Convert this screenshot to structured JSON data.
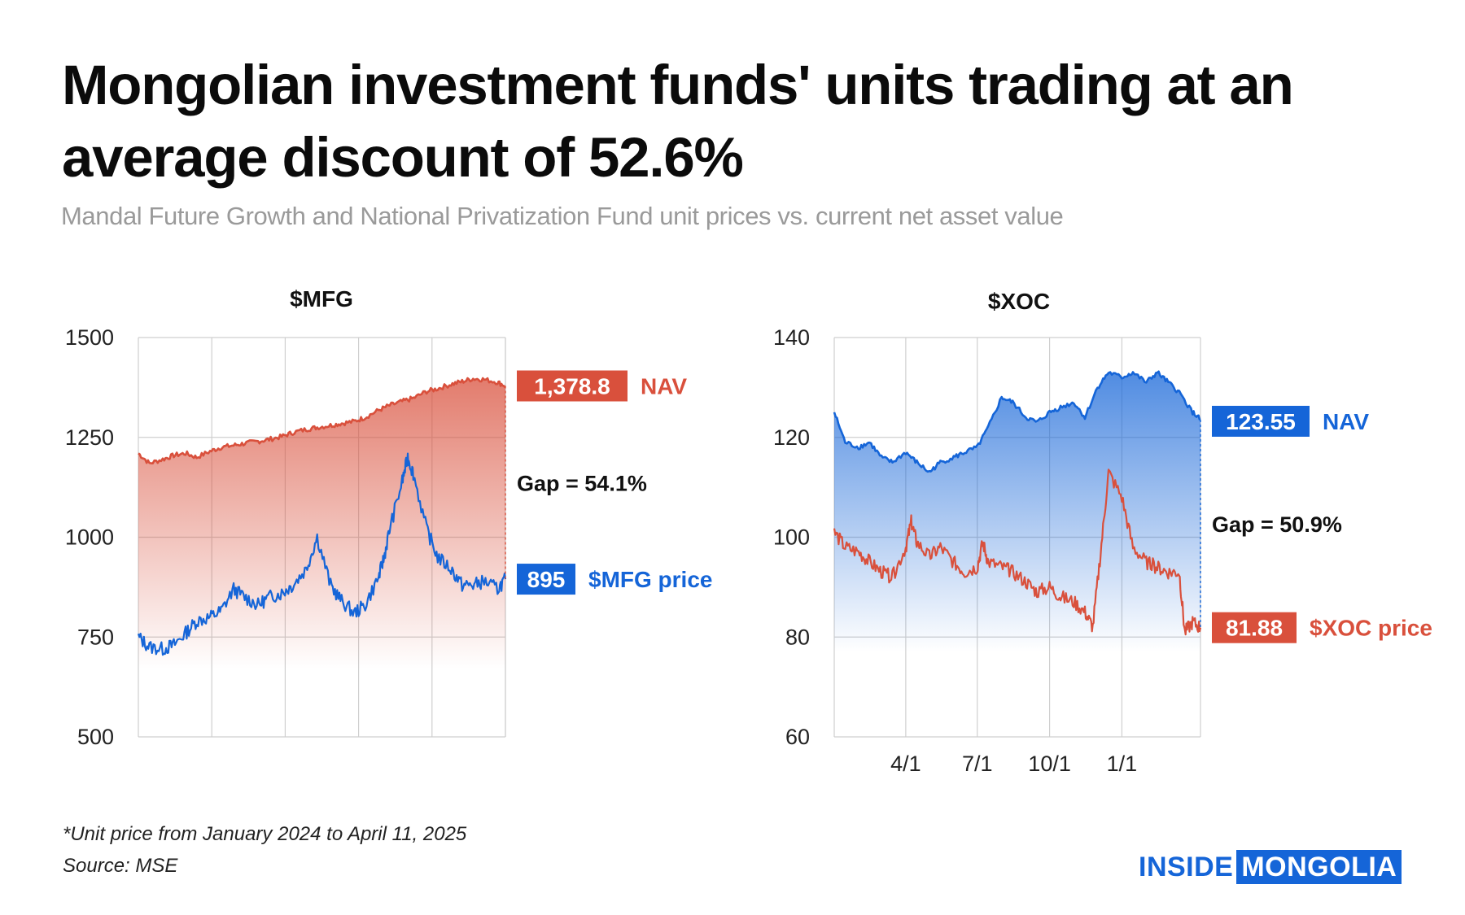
{
  "title": "Mongolian investment funds' units trading at an average discount of 52.6%",
  "subtitle": "Mandal Future Growth and National Privatization Fund unit prices vs. current net asset value",
  "footnote": "*Unit price from January 2024 to April 11, 2025",
  "source": "Source: MSE",
  "logo": {
    "part1": "INSIDE",
    "part2": "MONGOLIA"
  },
  "colors": {
    "red": "#d9503c",
    "blue": "#1565d8",
    "grid": "#cfcfcf"
  },
  "chart_data": [
    {
      "type": "area",
      "title": "$MFG",
      "ylim": [
        500,
        1500
      ],
      "yticks": [
        500,
        750,
        1000,
        1250,
        1500
      ],
      "xticks": [],
      "grid": true,
      "x_range": [
        "2024-01-01",
        "2025-04-11"
      ],
      "series": [
        {
          "role": "nav",
          "color": "#d9503c",
          "x": [
            "2024-01-01",
            "2024-01-15",
            "2024-02-01",
            "2024-02-15",
            "2024-03-01",
            "2024-03-15",
            "2024-04-01",
            "2024-04-15",
            "2024-05-01",
            "2024-05-15",
            "2024-06-01",
            "2024-06-15",
            "2024-07-01",
            "2024-07-15",
            "2024-08-01",
            "2024-08-15",
            "2024-09-01",
            "2024-09-15",
            "2024-10-01",
            "2024-10-15",
            "2024-11-01",
            "2024-11-15",
            "2024-12-01",
            "2024-12-15",
            "2025-01-01",
            "2025-01-15",
            "2025-02-01",
            "2025-02-15",
            "2025-03-01",
            "2025-03-15",
            "2025-04-01",
            "2025-04-11"
          ],
          "values": [
            1210,
            1185,
            1195,
            1205,
            1210,
            1200,
            1215,
            1225,
            1230,
            1235,
            1240,
            1245,
            1252,
            1262,
            1270,
            1275,
            1280,
            1285,
            1290,
            1300,
            1318,
            1330,
            1340,
            1348,
            1365,
            1372,
            1383,
            1390,
            1397,
            1395,
            1388,
            1378.8
          ],
          "label": "1,378.8",
          "name": "NAV"
        },
        {
          "role": "price",
          "color": "#1565d8",
          "x": [
            "2024-01-01",
            "2024-01-15",
            "2024-02-01",
            "2024-02-15",
            "2024-03-01",
            "2024-03-15",
            "2024-04-01",
            "2024-04-15",
            "2024-05-01",
            "2024-05-15",
            "2024-06-01",
            "2024-06-15",
            "2024-07-01",
            "2024-07-15",
            "2024-08-01",
            "2024-08-15",
            "2024-09-01",
            "2024-09-15",
            "2024-10-01",
            "2024-10-15",
            "2024-11-01",
            "2024-11-08",
            "2024-11-15",
            "2024-12-01",
            "2024-12-08",
            "2024-12-15",
            "2025-01-01",
            "2025-01-15",
            "2025-02-01",
            "2025-02-15",
            "2025-03-01",
            "2025-03-15",
            "2025-04-01",
            "2025-04-11"
          ],
          "values": [
            750,
            725,
            720,
            730,
            760,
            790,
            800,
            815,
            870,
            850,
            830,
            850,
            860,
            880,
            920,
            1000,
            880,
            840,
            810,
            830,
            900,
            950,
            1020,
            1140,
            1200,
            1160,
            1020,
            950,
            920,
            880,
            880,
            890,
            870,
            895
          ],
          "label": "895",
          "name": "$MFG price"
        }
      ],
      "gap_label": "Gap = 54.1%"
    },
    {
      "type": "area",
      "title": "$XOC",
      "ylim": [
        60,
        140
      ],
      "yticks": [
        60,
        80,
        100,
        120,
        140
      ],
      "xticks": [
        {
          "x": "2024-04-01",
          "label": "4/1"
        },
        {
          "x": "2024-07-01",
          "label": "7/1"
        },
        {
          "x": "2024-10-01",
          "label": "10/1"
        },
        {
          "x": "2025-01-01",
          "label": "1/1"
        }
      ],
      "grid": true,
      "x_range": [
        "2024-01-01",
        "2025-04-11"
      ],
      "series": [
        {
          "role": "nav",
          "color": "#1565d8",
          "x": [
            "2024-01-01",
            "2024-01-15",
            "2024-02-01",
            "2024-02-15",
            "2024-03-01",
            "2024-03-15",
            "2024-04-01",
            "2024-04-15",
            "2024-05-01",
            "2024-05-15",
            "2024-06-01",
            "2024-06-15",
            "2024-07-01",
            "2024-07-15",
            "2024-08-01",
            "2024-08-15",
            "2024-09-01",
            "2024-09-15",
            "2024-10-01",
            "2024-10-15",
            "2024-11-01",
            "2024-11-15",
            "2024-12-01",
            "2024-12-15",
            "2025-01-01",
            "2025-01-15",
            "2025-02-01",
            "2025-02-15",
            "2025-03-01",
            "2025-03-15",
            "2025-04-01",
            "2025-04-11"
          ],
          "values": [
            125,
            119,
            118,
            119,
            116,
            115,
            117,
            115,
            113,
            115,
            116,
            117,
            118,
            122,
            128,
            127,
            124,
            123,
            125,
            126,
            127,
            124,
            130,
            133,
            132,
            133,
            131,
            133,
            131,
            129,
            125,
            123.55
          ],
          "label": "123.55",
          "name": "NAV"
        },
        {
          "role": "price",
          "color": "#d9503c",
          "x": [
            "2024-01-01",
            "2024-01-15",
            "2024-02-01",
            "2024-02-15",
            "2024-03-01",
            "2024-03-15",
            "2024-04-01",
            "2024-04-08",
            "2024-04-15",
            "2024-05-01",
            "2024-05-15",
            "2024-06-01",
            "2024-06-15",
            "2024-07-01",
            "2024-07-08",
            "2024-07-15",
            "2024-08-01",
            "2024-08-15",
            "2024-09-01",
            "2024-09-15",
            "2024-10-01",
            "2024-10-15",
            "2024-11-01",
            "2024-11-15",
            "2024-11-25",
            "2024-12-05",
            "2024-12-15",
            "2025-01-01",
            "2025-01-15",
            "2025-02-01",
            "2025-02-15",
            "2025-03-01",
            "2025-03-15",
            "2025-03-22",
            "2025-04-01",
            "2025-04-11"
          ],
          "values": [
            101,
            98,
            97,
            95,
            93,
            92,
            98,
            103,
            99,
            96,
            98,
            95,
            93,
            94,
            99,
            95,
            94,
            93,
            91,
            89,
            90,
            88,
            87,
            85,
            82,
            97,
            113,
            108,
            98,
            95,
            94,
            93,
            93,
            81,
            83,
            81.88
          ],
          "label": "81.88",
          "name": "$XOC price"
        }
      ],
      "gap_label": "Gap = 50.9%"
    }
  ]
}
